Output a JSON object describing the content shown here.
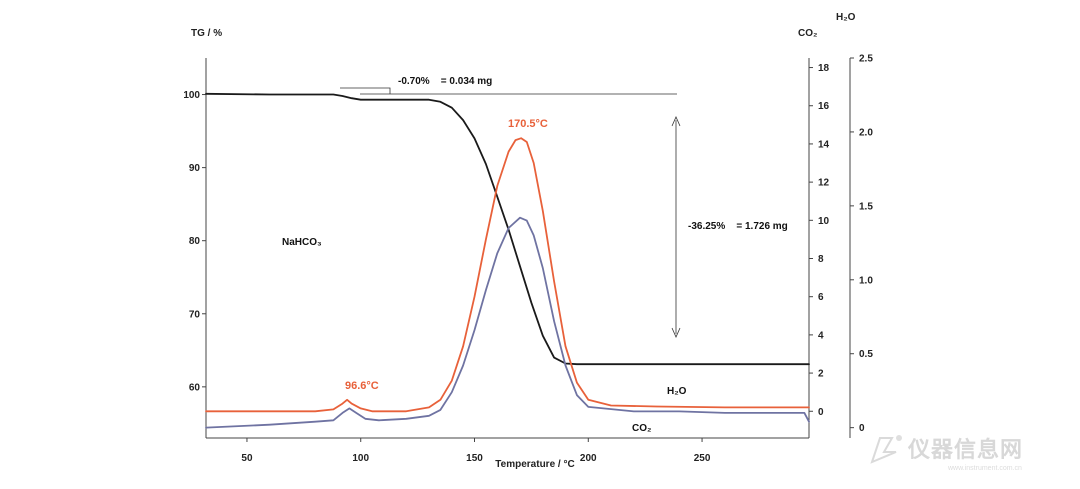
{
  "chart_data": {
    "type": "line",
    "xlabel": "Temperature / °C",
    "xlim": [
      32,
      297
    ],
    "x_ticks": [
      50,
      100,
      150,
      200,
      250
    ],
    "y_axes": {
      "tg": {
        "label": "TG / %",
        "lim": [
          53,
          105
        ],
        "ticks": [
          60,
          70,
          80,
          90,
          100
        ],
        "tick_labels": [
          "60",
          "70",
          "80",
          "90",
          "100"
        ]
      },
      "co2": {
        "label": "CO₂",
        "lim": [
          -1.4,
          18.5
        ],
        "ticks": [
          0,
          2,
          4,
          6,
          8,
          10,
          12,
          14,
          16,
          18
        ],
        "tick_labels": [
          "0",
          "2",
          "4",
          "6",
          "8",
          "10",
          "12",
          "14",
          "16",
          "18"
        ]
      },
      "h2o": {
        "label": "H₂O",
        "lim": [
          -0.07,
          2.5
        ],
        "ticks": [
          0,
          0.5,
          1.0,
          1.5,
          2.0,
          2.5
        ],
        "tick_labels": [
          "0",
          "0.5",
          "1.0",
          "1.5",
          "2.0",
          "2.5"
        ]
      }
    },
    "series": [
      {
        "name": "TG",
        "axis": "tg",
        "color": "#1a1a1a",
        "x": [
          32,
          60,
          88,
          92,
          96,
          100,
          110,
          130,
          135,
          140,
          145,
          150,
          155,
          160,
          165,
          170,
          175,
          180,
          185,
          190,
          195,
          200,
          240,
          297
        ],
        "y": [
          100.1,
          100.0,
          100.0,
          99.8,
          99.5,
          99.3,
          99.3,
          99.3,
          99.0,
          98.2,
          96.5,
          94.0,
          90.5,
          86.0,
          81.5,
          76.5,
          71.5,
          67.0,
          64.0,
          63.2,
          63.1,
          63.1,
          63.1,
          63.1
        ]
      },
      {
        "name": "CO₂",
        "axis": "co2",
        "color": "#e8613a",
        "x": [
          32,
          80,
          88,
          92,
          94,
          96,
          100,
          105,
          120,
          130,
          135,
          140,
          145,
          150,
          155,
          160,
          165,
          168,
          170.5,
          173,
          176,
          180,
          185,
          190,
          195,
          200,
          210,
          230,
          260,
          297
        ],
        "y": [
          0.0,
          0.0,
          0.1,
          0.4,
          0.6,
          0.4,
          0.15,
          0.0,
          0.0,
          0.2,
          0.6,
          1.6,
          3.4,
          6.0,
          9.0,
          11.8,
          13.6,
          14.2,
          14.3,
          14.1,
          13.0,
          10.5,
          6.8,
          3.4,
          1.5,
          0.6,
          0.3,
          0.25,
          0.2,
          0.2
        ]
      },
      {
        "name": "H₂O",
        "axis": "h2o",
        "color": "#6f73a2",
        "x": [
          32,
          60,
          80,
          88,
          92,
          95,
          98,
          102,
          108,
          120,
          130,
          135,
          140,
          145,
          150,
          155,
          160,
          165,
          170,
          173,
          176,
          180,
          185,
          190,
          195,
          200,
          220,
          240,
          260,
          280,
          295,
          297
        ],
        "y": [
          0.0,
          0.02,
          0.04,
          0.05,
          0.1,
          0.13,
          0.1,
          0.06,
          0.05,
          0.06,
          0.08,
          0.12,
          0.24,
          0.42,
          0.66,
          0.93,
          1.18,
          1.35,
          1.42,
          1.4,
          1.3,
          1.08,
          0.72,
          0.42,
          0.22,
          0.14,
          0.11,
          0.11,
          0.1,
          0.1,
          0.1,
          0.04
        ]
      }
    ],
    "annotations": {
      "peak_main": "170.5°C",
      "peak_small": "96.6°C",
      "loss_first": "-0.70%    = 0.034 mg",
      "loss_main": "-36.25%    = 1.726 mg",
      "sample": "NaHCO₃",
      "label_h2o": "H₂O",
      "label_co2": "CO₂"
    },
    "legend": "none",
    "grid": false
  },
  "watermark": {
    "text": "仪器信息网",
    "subtext": "www.instrument.com.cn"
  }
}
